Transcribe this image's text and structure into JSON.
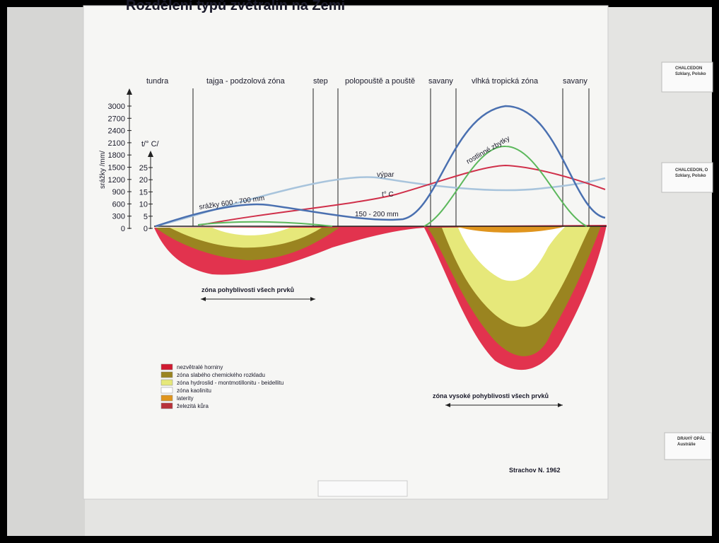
{
  "header": {
    "title": "Rozdělení typů zvětralin na Zemi"
  },
  "zones": [
    "tundra",
    "tajga - podzolová zóna",
    "step",
    "polopouště a pouště",
    "savany",
    "vlhká tropická zóna",
    "savany"
  ],
  "precipitation_axis": {
    "label": "srážky /mm/",
    "ticks": [
      3000,
      2700,
      2400,
      2100,
      1800,
      1500,
      1200,
      900,
      600,
      300,
      0
    ]
  },
  "temperature_axis": {
    "label": "t/° C/",
    "ticks": [
      25,
      20,
      15,
      10,
      5,
      0
    ]
  },
  "curve_labels": {
    "evaporation": "výpar",
    "temperature": "t° C",
    "precipitation_temperate": "srážky 600 - 700 mm",
    "precipitation_desert": "150 - 200 mm",
    "plant_remains": "rostlinné zbytky"
  },
  "annotations": [
    "zóna pohyblivosti všech prvků",
    "zóna vysoké pohyblivosti všech prvků"
  ],
  "legend": [
    {
      "name": "nezvětralé horniny",
      "color": "#d01a30"
    },
    {
      "name": "zóna slabého chemického rozkladu",
      "color": "#9a8420"
    },
    {
      "name": "zóna hydroslid - montmotillonitu - beidellitu",
      "color": "#e6e87a"
    },
    {
      "name": "zóna kaolinitu",
      "color": "#ffffff"
    },
    {
      "name": "laterity",
      "color": "#e0951e"
    },
    {
      "name": "železitá kůra",
      "color": "#b8323a"
    }
  ],
  "credit": "Strachov N. 1962",
  "cards": [
    {
      "title": "CHALCEDON",
      "subtitle": "Szklary, Polsko"
    },
    {
      "title": "CHALCEDON, O",
      "subtitle": "Szklary, Polsko"
    },
    {
      "title": "DRAHÝ OPÁL",
      "subtitle": "Austrálie"
    }
  ]
}
